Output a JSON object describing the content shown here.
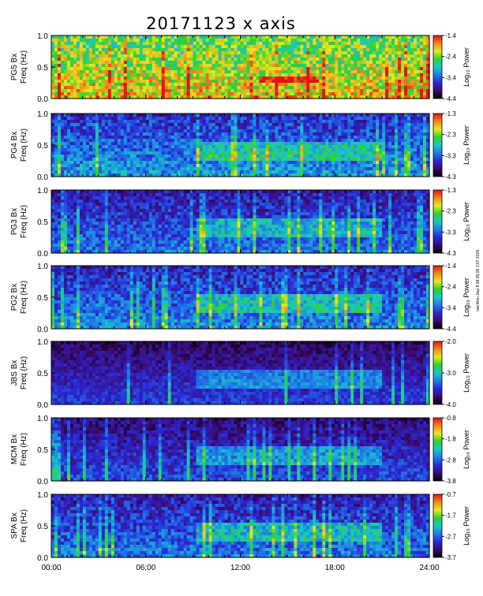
{
  "title": "20171123 x axis",
  "stamp": "nwt Mon Sep 9 08:05:09 CST 2019",
  "chart_data": {
    "type": "heatmap",
    "x_tick_labels": [
      "00:00",
      "06:00",
      "12:00",
      "18:00",
      "24:00"
    ],
    "x_ticks_hours": [
      0,
      6,
      12,
      18,
      24
    ],
    "xlim_hours": [
      0,
      24
    ],
    "ylim": [
      0,
      1.0
    ],
    "y_tick_labels": [
      "0.0",
      "0.5",
      "1.0"
    ],
    "y_ticks": [
      0.0,
      0.5,
      1.0
    ],
    "colorbar_label": "Log₁₀ Power",
    "colormap": [
      "#000000",
      "#3b0a70",
      "#2a2ad6",
      "#1e7de8",
      "#19c8c8",
      "#2ed12e",
      "#e8e820",
      "#f08a1a",
      "#e01414"
    ],
    "panels": [
      {
        "station": "PG5 Bx",
        "ylabel": "Freq (Hz)",
        "colorbar_ticks": [
          "-1.4",
          "-2.4",
          "-3.4",
          "-4.4"
        ]
      },
      {
        "station": "PG4 Bx",
        "ylabel": "Freq (Hz)",
        "colorbar_ticks": [
          "-1.3",
          "-2.3",
          "-3.3",
          "-4.3"
        ]
      },
      {
        "station": "PG3 Bx",
        "ylabel": "Freq (Hz)",
        "colorbar_ticks": [
          "-1.3",
          "-2.3",
          "-3.3",
          "-4.3"
        ]
      },
      {
        "station": "PG2 Bx",
        "ylabel": "Freq (Hz)",
        "colorbar_ticks": [
          "-1.4",
          "-2.4",
          "-3.4",
          "-4.4"
        ]
      },
      {
        "station": "JBS Bx",
        "ylabel": "Freq (Hz)",
        "colorbar_ticks": [
          "-2.0",
          "-3.0",
          "-4.0"
        ]
      },
      {
        "station": "MCM Bx",
        "ylabel": "Freq (Hz)",
        "colorbar_ticks": [
          "-0.8",
          "-1.8",
          "-2.8",
          "-3.8"
        ]
      },
      {
        "station": "SPA Bx",
        "ylabel": "Freq (Hz)",
        "colorbar_ticks": [
          "-0.7",
          "-1.7",
          "-2.7",
          "-3.7"
        ]
      }
    ]
  }
}
